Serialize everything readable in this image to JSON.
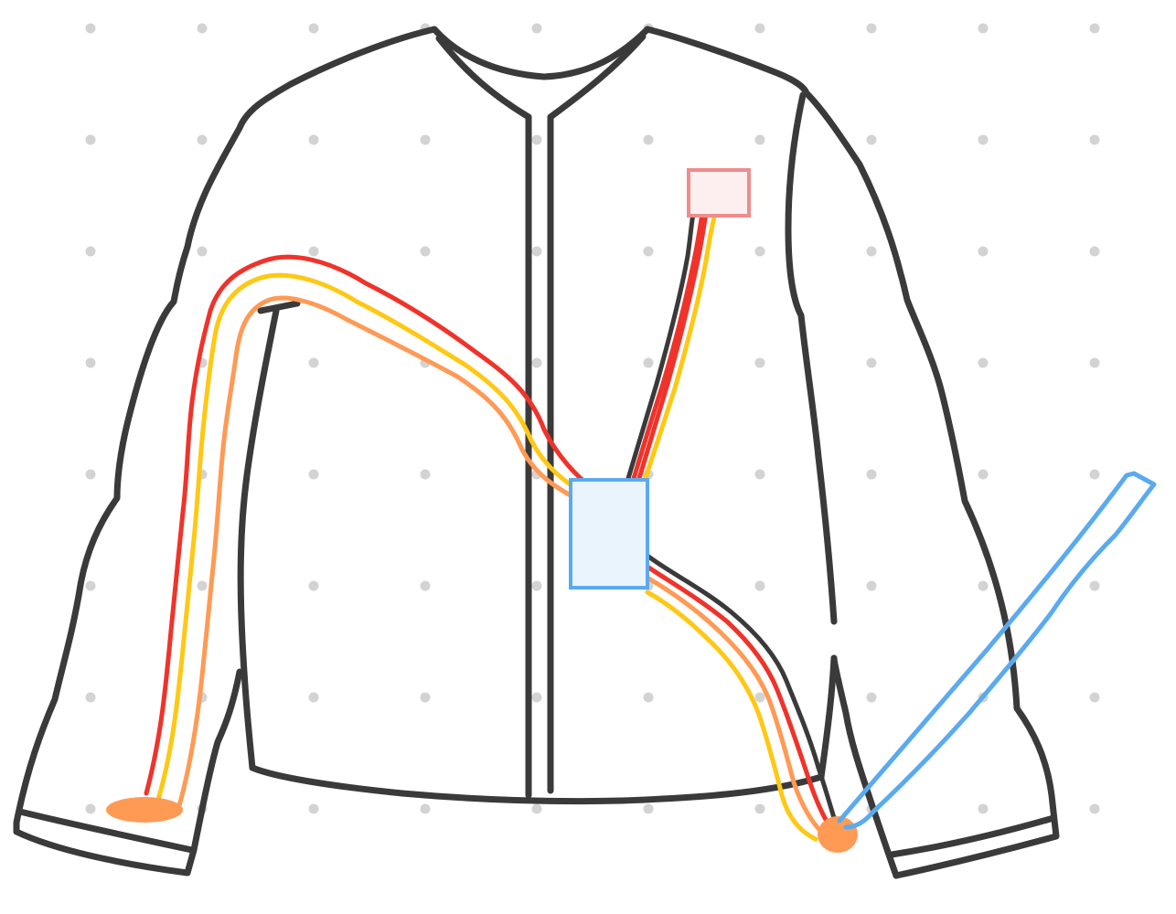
{
  "colors": {
    "background": "#ffffff",
    "grid_dot": "#d3d3d3",
    "outline": "#3a3a3a",
    "wire_red": "#f0332a",
    "wire_yellow": "#ffc814",
    "wire_orange": "#ff9a55",
    "controller_stroke": "#5aaaf0",
    "controller_fill": "#eaf4fd",
    "sensor_stroke": "#f08c8c",
    "sensor_fill": "#fdeff0",
    "pad_fill": "#ff9a55",
    "stylus": "#5aaaf0"
  },
  "components": [
    {
      "name": "jacket-outline",
      "icon": "jacket-icon"
    },
    {
      "name": "center-zipper",
      "icon": "zipper-icon"
    },
    {
      "name": "chest-sensor",
      "icon": "sensor-icon"
    },
    {
      "name": "center-controller",
      "icon": "controller-icon"
    },
    {
      "name": "left-cuff-pad",
      "icon": "contact-pad-icon"
    },
    {
      "name": "right-hem-pad",
      "icon": "contact-pad-icon"
    },
    {
      "name": "drawing-stylus",
      "icon": "stylus-icon"
    }
  ],
  "wire_bundles": [
    {
      "from": "center-controller",
      "to": "left-cuff-pad",
      "colors": [
        "wire_red",
        "wire_yellow",
        "wire_orange"
      ]
    },
    {
      "from": "center-controller",
      "to": "chest-sensor",
      "colors": [
        "wire_red",
        "wire_yellow"
      ]
    },
    {
      "from": "center-controller",
      "to": "right-hem-pad",
      "colors": [
        "wire_red",
        "wire_orange",
        "wire_yellow"
      ]
    }
  ]
}
